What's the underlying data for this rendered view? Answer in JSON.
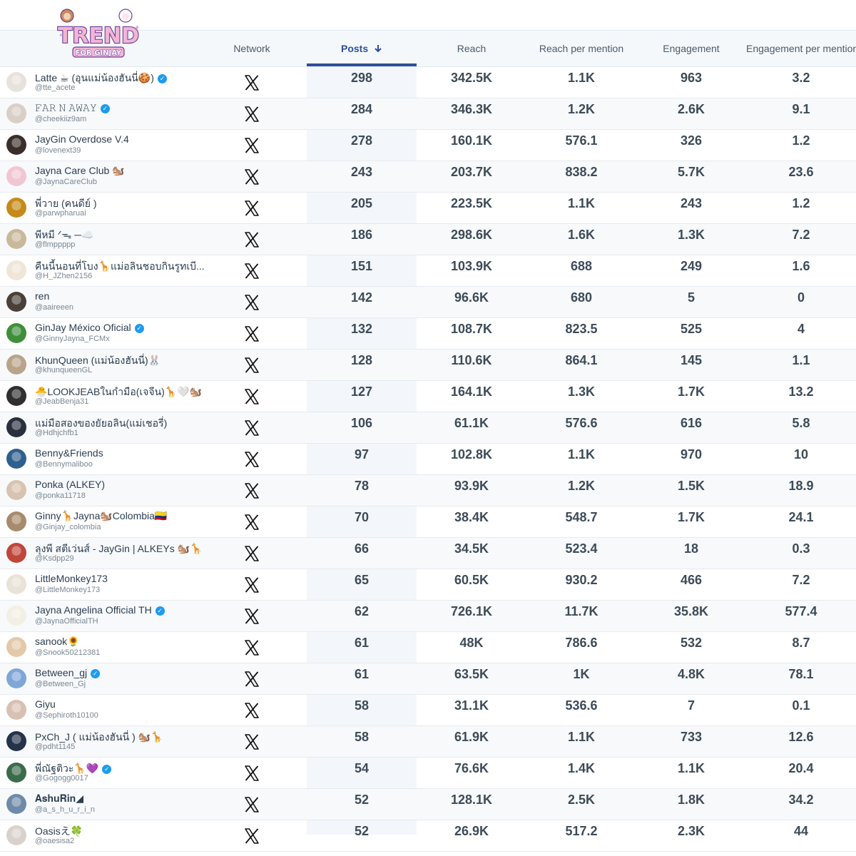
{
  "brand": {
    "logo_text": "TREND",
    "logo_subtext": "FOR GINJAY",
    "colors": {
      "logo_fill": "#f2b5d4",
      "logo_outline": "#6a3fa0",
      "sort_accent": "#2e4f9a",
      "verified": "#1d9bf0"
    }
  },
  "columns": {
    "network": "Network",
    "posts": "Posts",
    "posts_sort_icon": "arrow-down-icon",
    "reach": "Reach",
    "reach_per_mention": "Reach per mention",
    "engagement": "Engagement",
    "engagement_per_mention": "Engagement per mention"
  },
  "network_icon": "x-logo-icon",
  "rows": [
    {
      "name": "Latte ☕ (อุนแม่น้องฮันนี่🍪)",
      "verified": true,
      "handle": "@tte_acete",
      "posts": "298",
      "reach": "342.5K",
      "rpm": "1.1K",
      "eng": "963",
      "epm": "3.2",
      "avatar_color": "#e8e2dc"
    },
    {
      "name": "𝙵𝙰𝚁 𝙽 𝙰𝚆𝙰𝚈",
      "verified": true,
      "handle": "@cheekiiz9am",
      "posts": "284",
      "reach": "346.3K",
      "rpm": "1.2K",
      "eng": "2.6K",
      "epm": "9.1",
      "avatar_color": "#d9cfc6"
    },
    {
      "name": "JayGin Overdose V.4",
      "verified": false,
      "handle": "@lovenext39",
      "posts": "278",
      "reach": "160.1K",
      "rpm": "576.1",
      "eng": "326",
      "epm": "1.2",
      "avatar_color": "#3a2e2a"
    },
    {
      "name": "Jayna Care Club 🐿️",
      "verified": false,
      "handle": "@JaynaCareClub",
      "posts": "243",
      "reach": "203.7K",
      "rpm": "838.2",
      "eng": "5.7K",
      "epm": "23.6",
      "avatar_color": "#f1c6d3"
    },
    {
      "name": "พี่วาย (คนดีย์ )",
      "verified": false,
      "handle": "@parwpharuai",
      "posts": "205",
      "reach": "223.5K",
      "rpm": "1.1K",
      "eng": "243",
      "epm": "1.2",
      "avatar_color": "#c58a1a"
    },
    {
      "name": "พีหมี ᐟ⁠ᯓ⁠ ─☁️",
      "verified": false,
      "handle": "@flmppppp",
      "posts": "186",
      "reach": "298.6K",
      "rpm": "1.6K",
      "eng": "1.3K",
      "epm": "7.2",
      "avatar_color": "#c9b89a"
    },
    {
      "name": "คืนนี้นอนที่โบง🦒แม่อลินชอบกินรูทเบี...",
      "verified": false,
      "handle": "@H_JZhen2156",
      "posts": "151",
      "reach": "103.9K",
      "rpm": "688",
      "eng": "249",
      "epm": "1.6",
      "avatar_color": "#efe6d8"
    },
    {
      "name": "ren",
      "verified": false,
      "handle": "@aaireeen",
      "posts": "142",
      "reach": "96.6K",
      "rpm": "680",
      "eng": "5",
      "epm": "0",
      "avatar_color": "#4a4038"
    },
    {
      "name": "GinJay México Oficial",
      "verified": true,
      "handle": "@GinnyJayna_FCMx",
      "posts": "132",
      "reach": "108.7K",
      "rpm": "823.5",
      "eng": "525",
      "epm": "4",
      "avatar_color": "#3f8f3a"
    },
    {
      "name": "KhunQueen (แม่น้องฮันนี่)🐰",
      "verified": false,
      "handle": "@khunqueenGL",
      "posts": "128",
      "reach": "110.6K",
      "rpm": "864.1",
      "eng": "145",
      "epm": "1.1",
      "avatar_color": "#b8a48a"
    },
    {
      "name": "🐣LOOKJEABในกำมือ(เจจีน)🦒🤍🐿️",
      "verified": false,
      "handle": "@JeabBenja31",
      "posts": "127",
      "reach": "164.1K",
      "rpm": "1.3K",
      "eng": "1.7K",
      "epm": "13.2",
      "avatar_color": "#2f2f2f"
    },
    {
      "name": "แม่มือสองของยัยอลิน(แม่เชอรี่)",
      "verified": false,
      "handle": "@Hdhjchfb1",
      "posts": "106",
      "reach": "61.1K",
      "rpm": "576.6",
      "eng": "616",
      "epm": "5.8",
      "avatar_color": "#2a2f3e"
    },
    {
      "name": "Benny&Friends",
      "verified": false,
      "handle": "@Bennymaliboo",
      "posts": "97",
      "reach": "102.8K",
      "rpm": "1.1K",
      "eng": "970",
      "epm": "10",
      "avatar_color": "#2f5f8f"
    },
    {
      "name": "Ponka (ALKEY)",
      "verified": false,
      "handle": "@ponka11718",
      "posts": "78",
      "reach": "93.9K",
      "rpm": "1.2K",
      "eng": "1.5K",
      "epm": "18.9",
      "avatar_color": "#d7c3b0"
    },
    {
      "name": "Ginny🦒Jayna🐿️Colombia🇨🇴",
      "verified": false,
      "handle": "@Ginjay_colombia",
      "posts": "70",
      "reach": "38.4K",
      "rpm": "548.7",
      "eng": "1.7K",
      "epm": "24.1",
      "avatar_color": "#a78b6d"
    },
    {
      "name": "ลุงพี สตีเว่นส์ - JayGin | ALKEYs 🐿️🦒",
      "verified": false,
      "handle": "@Ksdpp29",
      "posts": "66",
      "reach": "34.5K",
      "rpm": "523.4",
      "eng": "18",
      "epm": "0.3",
      "avatar_color": "#c0453a"
    },
    {
      "name": "LittleMonkey173",
      "verified": false,
      "handle": "@LittleMonkey173",
      "posts": "65",
      "reach": "60.5K",
      "rpm": "930.2",
      "eng": "466",
      "epm": "7.2",
      "avatar_color": "#e9e2d6"
    },
    {
      "name": "Jayna Angelina Official TH",
      "verified": true,
      "handle": "@JaynaOfficialTH",
      "posts": "62",
      "reach": "726.1K",
      "rpm": "11.7K",
      "eng": "35.8K",
      "epm": "577.4",
      "avatar_color": "#f2efe4"
    },
    {
      "name": "sanook🌻",
      "verified": false,
      "handle": "@Snook50212381",
      "posts": "61",
      "reach": "48K",
      "rpm": "786.6",
      "eng": "532",
      "epm": "8.7",
      "avatar_color": "#e3c9a8"
    },
    {
      "name": "Between_gj",
      "verified": true,
      "handle": "@Between_Gj",
      "posts": "61",
      "reach": "63.5K",
      "rpm": "1K",
      "eng": "4.8K",
      "epm": "78.1",
      "avatar_color": "#7fa6d8"
    },
    {
      "name": "Giyu",
      "verified": false,
      "handle": "@Sephiroth10100",
      "posts": "58",
      "reach": "31.1K",
      "rpm": "536.6",
      "eng": "7",
      "epm": "0.1",
      "avatar_color": "#d8c0b2"
    },
    {
      "name": "PxCh_J ( แม่น้องฮันนี่ ) 🐿️🦒",
      "verified": false,
      "handle": "@pdht1145",
      "posts": "58",
      "reach": "61.9K",
      "rpm": "1.1K",
      "eng": "733",
      "epm": "12.6",
      "avatar_color": "#24324a"
    },
    {
      "name": "พี่ณัฐติวะ🦒💜",
      "verified": true,
      "handle": "@Gogogg0017",
      "posts": "54",
      "reach": "76.6K",
      "rpm": "1.4K",
      "eng": "1.1K",
      "epm": "20.4",
      "avatar_color": "#3a6b4a"
    },
    {
      "name": "𝐀𝐬𝐡𝐮𝐑𝐢𝐧◢",
      "verified": false,
      "handle": "@a_s_h_u_r_i_n",
      "posts": "52",
      "reach": "128.1K",
      "rpm": "2.5K",
      "eng": "1.8K",
      "epm": "34.2",
      "avatar_color": "#6f8aa8"
    },
    {
      "name": "Oasisえ🍀",
      "verified": false,
      "handle": "@oaesisa2",
      "posts": "52",
      "reach": "26.9K",
      "rpm": "517.2",
      "eng": "2.3K",
      "epm": "44",
      "avatar_color": "#d9d2cc"
    }
  ]
}
